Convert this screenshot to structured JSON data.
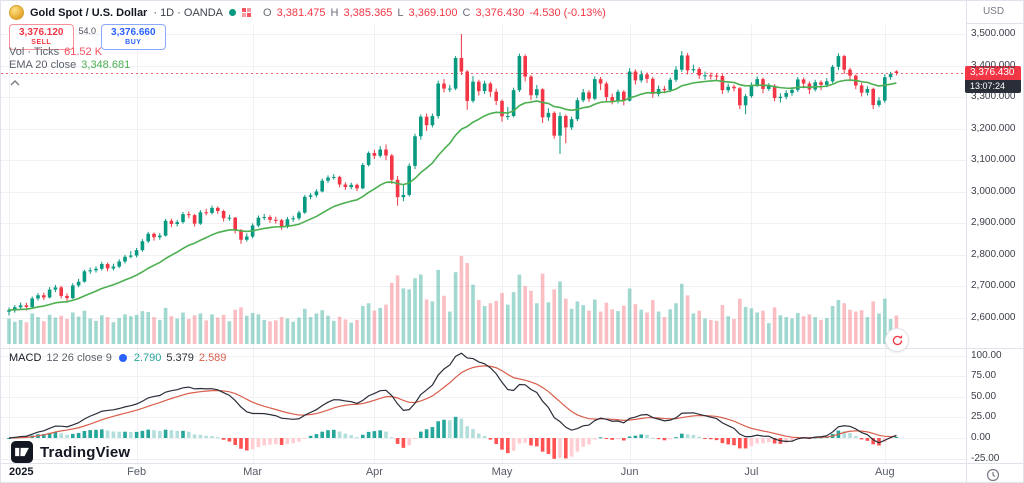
{
  "header": {
    "title_symbol": "Gold Spot / U.S. Dollar",
    "title_suffix": "· 1D · OANDA",
    "currency": "USD",
    "ohlc": {
      "o_label": "O",
      "o_value": "3,381.475",
      "h_label": "H",
      "h_value": "3,385.365",
      "l_label": "L",
      "l_value": "3,369.100",
      "c_label": "C",
      "c_value": "3,376.430",
      "change": "-4.530 (-0.13%)"
    }
  },
  "trade_panel": {
    "sell_price": "3,376.120",
    "sell_label": "SELL",
    "spread": "54.0",
    "buy_price": "3,376.660",
    "buy_label": "BUY"
  },
  "legends": {
    "volume_title": "Vol · Ticks",
    "volume_value": "61.52 K",
    "ema_title": "EMA 20 close",
    "ema_value": "3,348.681",
    "macd_title": "MACD",
    "macd_params": "12 26 close 9",
    "macd_hist_value": "2.790",
    "macd_line_value": "5.379",
    "macd_signal_value": "2.589"
  },
  "price_scale": {
    "last_price_text": "3,376.430",
    "countdown": "13:07:24"
  },
  "watermark": "TradingView",
  "chart_data": {
    "type": "candlestick",
    "title": "Gold Spot / U.S. Dollar, 1D, OANDA",
    "last_price": 3376.43,
    "price_axis": {
      "ylim": [
        2600,
        3500
      ],
      "ticks": [
        {
          "value": 3500,
          "label": "3,500.000"
        },
        {
          "value": 3400,
          "label": "3,400.000"
        },
        {
          "value": 3300,
          "label": "3,300.000"
        },
        {
          "value": 3200,
          "label": "3,200.000"
        },
        {
          "value": 3100,
          "label": "3,100.000"
        },
        {
          "value": 3000,
          "label": "3,000.000"
        },
        {
          "value": 2900,
          "label": "2,900.000"
        },
        {
          "value": 2800,
          "label": "2,800.000"
        },
        {
          "value": 2700,
          "label": "2,700.000"
        },
        {
          "value": 2600,
          "label": "2,600.000"
        }
      ]
    },
    "macd_axis": {
      "ylim": [
        -25,
        100
      ],
      "ticks": [
        {
          "value": 100,
          "label": "100.00"
        },
        {
          "value": 75,
          "label": "75.00"
        },
        {
          "value": 50,
          "label": "50.00"
        },
        {
          "value": 25,
          "label": "25.00"
        },
        {
          "value": 0,
          "label": "0.00"
        },
        {
          "value": -25,
          "label": "-25.00"
        }
      ]
    },
    "x_axis": {
      "labels": [
        {
          "text": "2025",
          "index": 0,
          "bold": true
        },
        {
          "text": "Feb",
          "index": 22
        },
        {
          "text": "Mar",
          "index": 42
        },
        {
          "text": "Apr",
          "index": 63
        },
        {
          "text": "May",
          "index": 85
        },
        {
          "text": "Jun",
          "index": 107
        },
        {
          "text": "Jul",
          "index": 128
        },
        {
          "text": "Aug",
          "index": 151
        }
      ]
    },
    "month_start_indices": [
      0,
      22,
      42,
      63,
      85,
      107,
      128,
      151
    ],
    "indicators": {
      "ema_period": 20,
      "macd_fast": 12,
      "macd_slow": 26,
      "macd_signal": 9
    },
    "colors": {
      "up": "#089981",
      "down": "#f23645",
      "vol_up": "rgba(8,153,129,0.38)",
      "vol_down": "rgba(242,54,69,0.32)",
      "ema": "#4caf50",
      "macd_line": "#2a2e39",
      "macd_signal": "#d95f4c",
      "hist_up": "#26a69a",
      "hist_up_fade": "#b2dfdb",
      "hist_down": "#ff5252",
      "hist_down_fade": "#ffcdd2",
      "grid": "#f0f1f5",
      "separator": "#e0e3eb",
      "last_price_line": "#f23645"
    },
    "candles_ohlcv": [
      [
        2620,
        2633,
        2608,
        2625,
        55
      ],
      [
        2625,
        2641,
        2617,
        2634,
        48
      ],
      [
        2634,
        2649,
        2629,
        2640,
        52
      ],
      [
        2640,
        2648,
        2624,
        2635,
        47
      ],
      [
        2635,
        2668,
        2633,
        2662,
        66
      ],
      [
        2662,
        2679,
        2655,
        2672,
        58
      ],
      [
        2672,
        2680,
        2657,
        2665,
        49
      ],
      [
        2665,
        2698,
        2662,
        2690,
        63
      ],
      [
        2690,
        2705,
        2682,
        2697,
        57
      ],
      [
        2697,
        2702,
        2662,
        2670,
        61
      ],
      [
        2670,
        2678,
        2652,
        2663,
        54
      ],
      [
        2663,
        2710,
        2660,
        2703,
        68
      ],
      [
        2703,
        2724,
        2698,
        2715,
        59
      ],
      [
        2715,
        2753,
        2712,
        2748,
        72
      ],
      [
        2748,
        2760,
        2740,
        2751,
        55
      ],
      [
        2751,
        2764,
        2744,
        2756,
        50
      ],
      [
        2756,
        2778,
        2750,
        2771,
        62
      ],
      [
        2771,
        2776,
        2748,
        2757,
        58
      ],
      [
        2757,
        2772,
        2751,
        2763,
        47
      ],
      [
        2763,
        2786,
        2758,
        2779,
        56
      ],
      [
        2779,
        2800,
        2773,
        2794,
        64
      ],
      [
        2794,
        2812,
        2789,
        2798,
        60
      ],
      [
        2798,
        2822,
        2792,
        2815,
        63
      ],
      [
        2815,
        2850,
        2810,
        2843,
        71
      ],
      [
        2843,
        2873,
        2838,
        2867,
        69
      ],
      [
        2867,
        2871,
        2845,
        2856,
        58
      ],
      [
        2856,
        2869,
        2848,
        2861,
        52
      ],
      [
        2861,
        2914,
        2858,
        2908,
        78
      ],
      [
        2908,
        2915,
        2888,
        2898,
        60
      ],
      [
        2898,
        2911,
        2890,
        2904,
        55
      ],
      [
        2904,
        2936,
        2899,
        2929,
        68
      ],
      [
        2929,
        2938,
        2916,
        2926,
        54
      ],
      [
        2926,
        2930,
        2890,
        2899,
        62
      ],
      [
        2899,
        2942,
        2895,
        2935,
        66
      ],
      [
        2935,
        2946,
        2925,
        2933,
        51
      ],
      [
        2933,
        2956,
        2928,
        2949,
        64
      ],
      [
        2949,
        2954,
        2930,
        2939,
        57
      ],
      [
        2939,
        2943,
        2906,
        2916,
        63
      ],
      [
        2916,
        2927,
        2908,
        2918,
        49
      ],
      [
        2918,
        2920,
        2868,
        2878,
        74
      ],
      [
        2878,
        2882,
        2835,
        2848,
        79
      ],
      [
        2848,
        2868,
        2842,
        2858,
        61
      ],
      [
        2858,
        2900,
        2853,
        2893,
        67
      ],
      [
        2893,
        2925,
        2888,
        2918,
        64
      ],
      [
        2918,
        2930,
        2910,
        2920,
        52
      ],
      [
        2920,
        2926,
        2902,
        2911,
        49
      ],
      [
        2911,
        2921,
        2899,
        2910,
        51
      ],
      [
        2910,
        2914,
        2880,
        2889,
        58
      ],
      [
        2889,
        2920,
        2884,
        2913,
        55
      ],
      [
        2913,
        2924,
        2905,
        2916,
        48
      ],
      [
        2916,
        2940,
        2910,
        2934,
        57
      ],
      [
        2934,
        2990,
        2930,
        2984,
        76
      ],
      [
        2984,
        2996,
        2976,
        2989,
        58
      ],
      [
        2989,
        3008,
        2982,
        3001,
        66
      ],
      [
        3001,
        3042,
        2998,
        3035,
        73
      ],
      [
        3035,
        3052,
        3028,
        3045,
        61
      ],
      [
        3045,
        3056,
        3038,
        3047,
        50
      ],
      [
        3047,
        3051,
        3014,
        3023,
        59
      ],
      [
        3023,
        3030,
        3006,
        3015,
        53
      ],
      [
        3015,
        3029,
        3008,
        3022,
        46
      ],
      [
        3022,
        3026,
        3002,
        3011,
        52
      ],
      [
        3011,
        3091,
        3008,
        3085,
        82
      ],
      [
        3085,
        3128,
        3080,
        3123,
        88
      ],
      [
        3123,
        3133,
        3104,
        3114,
        72
      ],
      [
        3114,
        3145,
        3108,
        3134,
        78
      ],
      [
        3134,
        3150,
        3100,
        3115,
        85
      ],
      [
        3115,
        3120,
        3025,
        3038,
        132
      ],
      [
        3038,
        3050,
        2956,
        2983,
        148
      ],
      [
        2983,
        3022,
        2970,
        2990,
        120
      ],
      [
        2990,
        3090,
        2985,
        3082,
        118
      ],
      [
        3082,
        3184,
        3072,
        3176,
        142
      ],
      [
        3176,
        3245,
        3165,
        3238,
        150
      ],
      [
        3238,
        3248,
        3193,
        3211,
        96
      ],
      [
        3211,
        3248,
        3204,
        3240,
        92
      ],
      [
        3240,
        3352,
        3232,
        3343,
        160
      ],
      [
        3343,
        3357,
        3315,
        3327,
        104
      ],
      [
        3327,
        3339,
        3316,
        3327,
        70
      ],
      [
        3327,
        3430,
        3322,
        3424,
        155
      ],
      [
        3424,
        3500,
        3370,
        3381,
        190
      ],
      [
        3381,
        3386,
        3260,
        3288,
        175
      ],
      [
        3288,
        3367,
        3282,
        3349,
        128
      ],
      [
        3349,
        3355,
        3305,
        3319,
        95
      ],
      [
        3319,
        3352,
        3310,
        3343,
        82
      ],
      [
        3343,
        3348,
        3301,
        3317,
        88
      ],
      [
        3317,
        3327,
        3275,
        3288,
        93
      ],
      [
        3288,
        3292,
        3222,
        3239,
        110
      ],
      [
        3239,
        3269,
        3228,
        3240,
        85
      ],
      [
        3240,
        3330,
        3236,
        3322,
        112
      ],
      [
        3322,
        3438,
        3316,
        3430,
        150
      ],
      [
        3430,
        3435,
        3350,
        3365,
        125
      ],
      [
        3365,
        3370,
        3290,
        3306,
        115
      ],
      [
        3306,
        3338,
        3296,
        3325,
        88
      ],
      [
        3325,
        3328,
        3218,
        3236,
        152
      ],
      [
        3236,
        3265,
        3225,
        3250,
        90
      ],
      [
        3250,
        3255,
        3168,
        3178,
        118
      ],
      [
        3178,
        3252,
        3120,
        3240,
        135
      ],
      [
        3240,
        3245,
        3154,
        3204,
        98
      ],
      [
        3204,
        3238,
        3196,
        3230,
        76
      ],
      [
        3230,
        3298,
        3224,
        3290,
        92
      ],
      [
        3290,
        3326,
        3284,
        3315,
        84
      ],
      [
        3315,
        3322,
        3285,
        3295,
        72
      ],
      [
        3295,
        3366,
        3290,
        3357,
        96
      ],
      [
        3357,
        3364,
        3322,
        3343,
        70
      ],
      [
        3343,
        3349,
        3285,
        3300,
        89
      ],
      [
        3300,
        3311,
        3277,
        3288,
        75
      ],
      [
        3288,
        3324,
        3280,
        3317,
        71
      ],
      [
        3317,
        3322,
        3274,
        3289,
        83
      ],
      [
        3289,
        3392,
        3286,
        3381,
        120
      ],
      [
        3381,
        3388,
        3340,
        3353,
        86
      ],
      [
        3353,
        3384,
        3346,
        3372,
        74
      ],
      [
        3372,
        3378,
        3345,
        3358,
        68
      ],
      [
        3358,
        3364,
        3298,
        3310,
        95
      ],
      [
        3310,
        3337,
        3302,
        3326,
        70
      ],
      [
        3326,
        3335,
        3312,
        3322,
        58
      ],
      [
        3322,
        3362,
        3316,
        3355,
        75
      ],
      [
        3355,
        3398,
        3348,
        3387,
        88
      ],
      [
        3387,
        3446,
        3380,
        3432,
        130
      ],
      [
        3432,
        3440,
        3372,
        3385,
        105
      ],
      [
        3385,
        3403,
        3377,
        3389,
        66
      ],
      [
        3389,
        3395,
        3358,
        3369,
        72
      ],
      [
        3369,
        3381,
        3355,
        3369,
        55
      ],
      [
        3369,
        3378,
        3356,
        3368,
        52
      ],
      [
        3368,
        3376,
        3354,
        3367,
        50
      ],
      [
        3367,
        3372,
        3310,
        3322,
        84
      ],
      [
        3322,
        3343,
        3314,
        3333,
        60
      ],
      [
        3333,
        3339,
        3318,
        3328,
        54
      ],
      [
        3328,
        3332,
        3262,
        3274,
        98
      ],
      [
        3274,
        3310,
        3246,
        3303,
        80
      ],
      [
        3303,
        3347,
        3298,
        3339,
        77
      ],
      [
        3339,
        3366,
        3332,
        3357,
        68
      ],
      [
        3357,
        3362,
        3312,
        3326,
        72
      ],
      [
        3326,
        3344,
        3320,
        3336,
        45
      ],
      [
        3336,
        3341,
        3287,
        3297,
        79
      ],
      [
        3297,
        3312,
        3283,
        3301,
        62
      ],
      [
        3301,
        3322,
        3293,
        3313,
        58
      ],
      [
        3313,
        3332,
        3304,
        3323,
        55
      ],
      [
        3323,
        3364,
        3316,
        3356,
        67
      ],
      [
        3356,
        3362,
        3328,
        3343,
        60
      ],
      [
        3343,
        3350,
        3310,
        3324,
        64
      ],
      [
        3324,
        3355,
        3318,
        3347,
        58
      ],
      [
        3347,
        3353,
        3322,
        3339,
        52
      ],
      [
        3339,
        3360,
        3331,
        3350,
        56
      ],
      [
        3350,
        3402,
        3344,
        3396,
        82
      ],
      [
        3396,
        3439,
        3385,
        3430,
        95
      ],
      [
        3430,
        3434,
        3373,
        3387,
        88
      ],
      [
        3387,
        3393,
        3350,
        3368,
        74
      ],
      [
        3368,
        3372,
        3325,
        3337,
        70
      ],
      [
        3337,
        3345,
        3302,
        3314,
        73
      ],
      [
        3314,
        3335,
        3305,
        3326,
        58
      ],
      [
        3326,
        3330,
        3262,
        3275,
        92
      ],
      [
        3275,
        3300,
        3268,
        3289,
        66
      ],
      [
        3289,
        3372,
        3282,
        3363,
        98
      ],
      [
        3363,
        3380,
        3355,
        3373,
        54
      ],
      [
        3381.5,
        3385.4,
        3369.1,
        3376.4,
        61.5
      ]
    ]
  }
}
